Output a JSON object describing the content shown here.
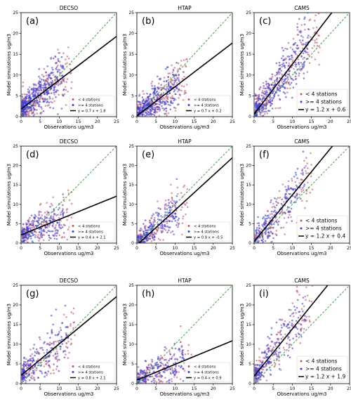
{
  "figure": {
    "colors": {
      "lt4": "#c05a6a",
      "ge4": "#3a3ae0",
      "fit": "#000000",
      "one_to_one": "#2e9a2e"
    }
  },
  "chart_data": [
    {
      "type": "scatter",
      "panel": "(a)",
      "title": "DECSO",
      "xlabel": "Observations ug/m3",
      "ylabel": "Model simulations ug/m3",
      "xlim": [
        0,
        25
      ],
      "ylim": [
        0,
        25
      ],
      "ticks": [
        0,
        5,
        10,
        15,
        20,
        25
      ],
      "ticklabels": [
        "0",
        "5",
        "10",
        "15",
        "20",
        "25"
      ],
      "legend": [
        "< 4 stations",
        ">= 4 stations",
        "y = 0.7 x + 1.8"
      ],
      "legend_position": "lower-right",
      "fit": {
        "slope": 0.7,
        "intercept": 1.8
      },
      "series": [
        {
          "name": "< 4 stations",
          "n": 260,
          "xmax": 13,
          "spread": 3.2,
          "seed": 11
        },
        {
          "name": ">= 4 stations",
          "n": 340,
          "xmax": 11,
          "spread": 2.8,
          "seed": 12
        }
      ]
    },
    {
      "type": "scatter",
      "panel": "(b)",
      "title": "HTAP",
      "xlabel": "Observations ug/m3",
      "ylabel": "Model simulations ug/m3",
      "xlim": [
        0,
        25
      ],
      "ylim": [
        0,
        25
      ],
      "ticks": [
        0,
        5,
        10,
        15,
        20,
        25
      ],
      "ticklabels": [
        "0",
        "5",
        "10",
        "15",
        "20",
        "25"
      ],
      "legend": [
        "< 4 stations",
        ">= 4 stations",
        "y = 0.7 x + 0.2"
      ],
      "legend_position": "lower-right",
      "fit": {
        "slope": 0.7,
        "intercept": 0.2
      },
      "series": [
        {
          "name": "< 4 stations",
          "n": 250,
          "xmax": 13,
          "spread": 2.8,
          "seed": 21
        },
        {
          "name": ">= 4 stations",
          "n": 320,
          "xmax": 11,
          "spread": 2.5,
          "seed": 22
        }
      ]
    },
    {
      "type": "scatter",
      "panel": "(c)",
      "title": "CAMS",
      "xlabel": "Observations ug/m3",
      "ylabel": "Model simulations ug/m3",
      "xlim": [
        0,
        25
      ],
      "ylim": [
        0,
        25
      ],
      "ticks": [
        0,
        5,
        10,
        15,
        20,
        25
      ],
      "ticklabels": [
        "0",
        "5",
        "10",
        "15",
        "20",
        "25"
      ],
      "legend": [
        "< 4 stations",
        ">= 4 stations",
        "y = 1.2 x + 0.6"
      ],
      "legend_position": "lower-right",
      "fit": {
        "slope": 1.2,
        "intercept": 0.6
      },
      "series": [
        {
          "name": "< 4 stations",
          "n": 260,
          "xmax": 17,
          "spread": 3.6,
          "seed": 31
        },
        {
          "name": ">= 4 stations",
          "n": 320,
          "xmax": 14,
          "spread": 3.2,
          "seed": 32
        }
      ]
    },
    {
      "type": "scatter",
      "panel": "(d)",
      "title": "DECSO",
      "xlabel": "Observations ug/m3",
      "ylabel": "Model simulations ug/m3",
      "xlim": [
        0,
        25
      ],
      "ylim": [
        0,
        25
      ],
      "ticks": [
        0,
        5,
        10,
        15,
        20,
        25
      ],
      "ticklabels": [
        "0",
        "5",
        "10",
        "15",
        "20",
        "25"
      ],
      "legend": [
        "< 4 stations",
        ">= 4 stations",
        "y = 0.4 x + 2.1"
      ],
      "legend_position": "lower-right",
      "fit": {
        "slope": 0.4,
        "intercept": 2.1
      },
      "series": [
        {
          "name": "< 4 stations",
          "n": 170,
          "xmax": 13,
          "spread": 2.8,
          "seed": 41
        },
        {
          "name": ">= 4 stations",
          "n": 200,
          "xmax": 11,
          "spread": 2.5,
          "seed": 42
        }
      ]
    },
    {
      "type": "scatter",
      "panel": "(e)",
      "title": "HTAP",
      "xlabel": "Observations ug/m3",
      "ylabel": "Model simulations ug/m3",
      "xlim": [
        0,
        25
      ],
      "ylim": [
        0,
        25
      ],
      "ticks": [
        0,
        5,
        10,
        15,
        20,
        25
      ],
      "ticklabels": [
        "0",
        "5",
        "10",
        "15",
        "20",
        "25"
      ],
      "legend": [
        "< 4 stations",
        ">= 4 stations",
        "y = 0.9 x + -0.5"
      ],
      "legend_position": "lower-right",
      "fit": {
        "slope": 0.9,
        "intercept": -0.5
      },
      "series": [
        {
          "name": "< 4 stations",
          "n": 170,
          "xmax": 13,
          "spread": 2.6,
          "seed": 51
        },
        {
          "name": ">= 4 stations",
          "n": 220,
          "xmax": 11,
          "spread": 2.3,
          "seed": 52
        }
      ]
    },
    {
      "type": "scatter",
      "panel": "(f)",
      "title": "CAMS",
      "xlabel": "Observations ug/m3",
      "ylabel": "Model simulations ug/m3",
      "xlim": [
        0,
        25
      ],
      "ylim": [
        0,
        25
      ],
      "ticks": [
        0,
        5,
        10,
        15,
        20,
        25
      ],
      "ticklabels": [
        "0",
        "5",
        "10",
        "15",
        "20",
        "25"
      ],
      "legend": [
        "< 4 stations",
        ">= 4 stations",
        "y = 1.2 x + 0.4"
      ],
      "legend_position": "lower-right",
      "fit": {
        "slope": 1.2,
        "intercept": 0.4
      },
      "series": [
        {
          "name": "< 4 stations",
          "n": 150,
          "xmax": 15,
          "spread": 3.4,
          "seed": 61
        },
        {
          "name": ">= 4 stations",
          "n": 180,
          "xmax": 13,
          "spread": 3.0,
          "seed": 62
        }
      ]
    },
    {
      "type": "scatter",
      "panel": "(g)",
      "title": "DECSO",
      "xlabel": "Observations ug/m3",
      "ylabel": "Model simulations ug/m3",
      "xlim": [
        0,
        25
      ],
      "ylim": [
        0,
        25
      ],
      "ticks": [
        0,
        5,
        10,
        15,
        20,
        25
      ],
      "ticklabels": [
        "0",
        "5",
        "10",
        "15",
        "20",
        "25"
      ],
      "legend": [
        "< 4 stations",
        ">= 4 stations",
        "y = 0.8 x + 2.1"
      ],
      "legend_position": "lower-right",
      "fit": {
        "slope": 0.8,
        "intercept": 2.1
      },
      "series": [
        {
          "name": "< 4 stations",
          "n": 150,
          "xmax": 14,
          "spread": 3.2,
          "seed": 71
        },
        {
          "name": ">= 4 stations",
          "n": 180,
          "xmax": 12,
          "spread": 2.9,
          "seed": 72
        }
      ]
    },
    {
      "type": "scatter",
      "panel": "(h)",
      "title": "HTAP",
      "xlabel": "Observations ug/m3",
      "ylabel": "Model simulations ug/m3",
      "xlim": [
        0,
        25
      ],
      "ylim": [
        0,
        25
      ],
      "ticks": [
        0,
        5,
        10,
        15,
        20,
        25
      ],
      "ticklabels": [
        "0",
        "5",
        "10",
        "15",
        "20",
        "25"
      ],
      "legend": [
        "< 4 stations",
        ">= 4 stations",
        "y = 0.4 x + 0.9"
      ],
      "legend_position": "lower-right",
      "fit": {
        "slope": 0.4,
        "intercept": 0.9
      },
      "series": [
        {
          "name": "< 4 stations",
          "n": 150,
          "xmax": 14,
          "spread": 2.6,
          "seed": 81
        },
        {
          "name": ">= 4 stations",
          "n": 180,
          "xmax": 12,
          "spread": 2.3,
          "seed": 82
        }
      ]
    },
    {
      "type": "scatter",
      "panel": "(i)",
      "title": "CAMS",
      "xlabel": "Observations ug/m3",
      "ylabel": "Model simulations ug/m3",
      "xlim": [
        0,
        25
      ],
      "ylim": [
        0,
        25
      ],
      "ticks": [
        0,
        5,
        10,
        15,
        20,
        25
      ],
      "ticklabels": [
        "0",
        "5",
        "10",
        "15",
        "20",
        "25"
      ],
      "legend": [
        "< 4 stations",
        ">= 4 stations",
        "y = 1.2 x + 1.9"
      ],
      "legend_position": "lower-right",
      "fit": {
        "slope": 1.2,
        "intercept": 1.9
      },
      "series": [
        {
          "name": "< 4 stations",
          "n": 150,
          "xmax": 15,
          "spread": 3.6,
          "seed": 91
        },
        {
          "name": ">= 4 stations",
          "n": 180,
          "xmax": 13,
          "spread": 3.2,
          "seed": 92
        }
      ]
    }
  ]
}
